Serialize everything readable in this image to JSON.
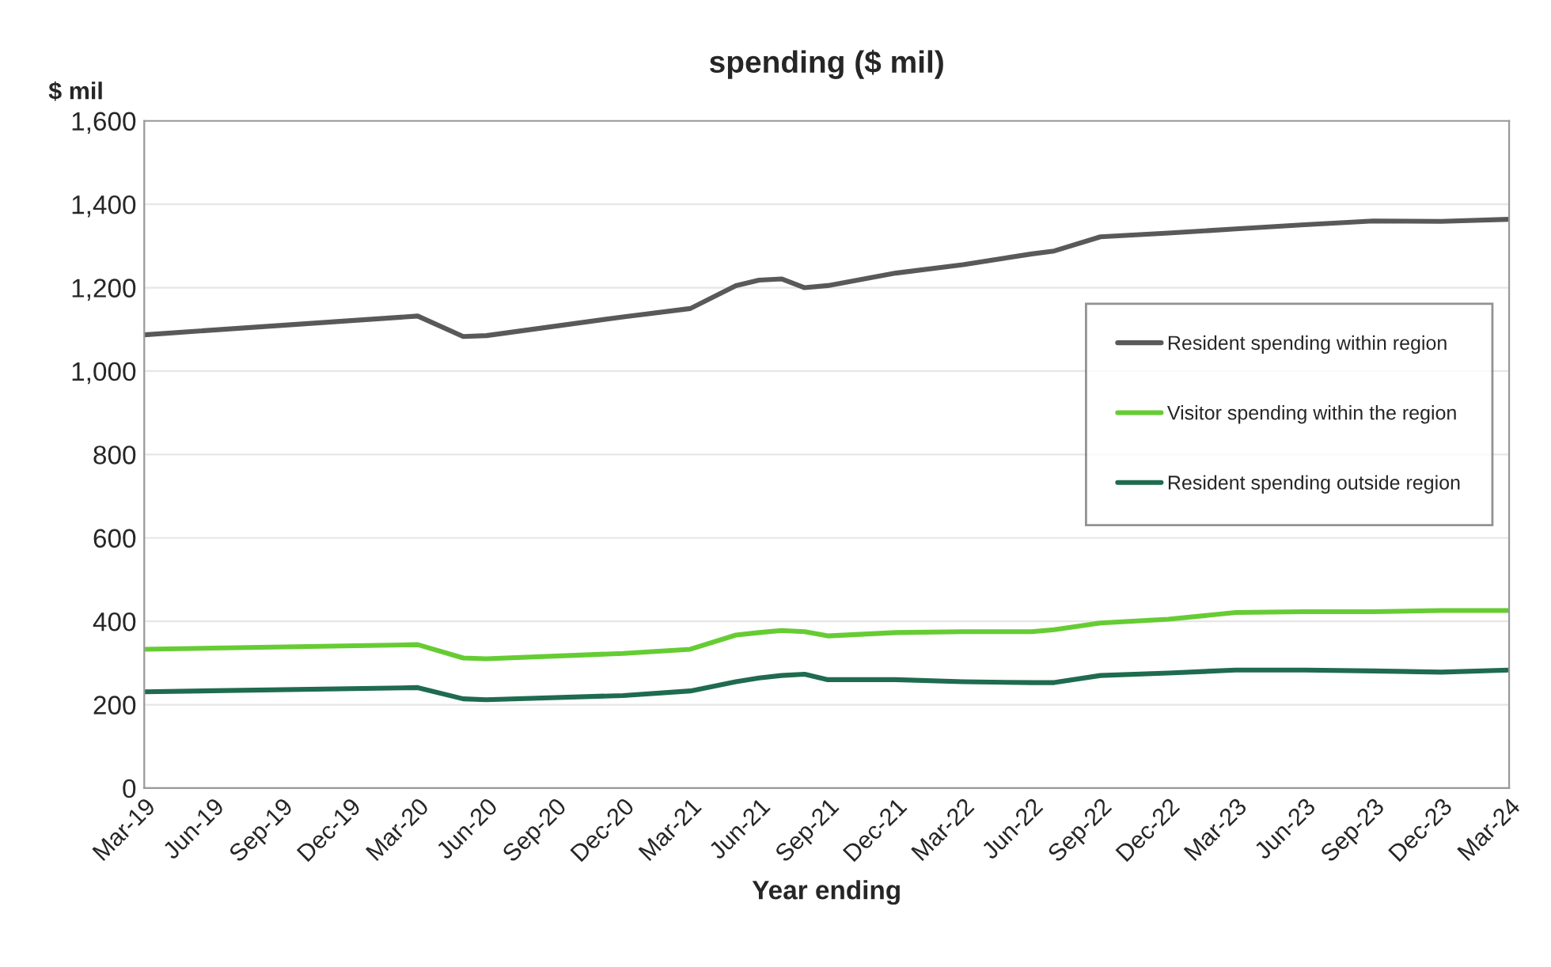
{
  "chart_data": {
    "type": "line",
    "title": "spending ($ mil)",
    "ylabel": "$ mil",
    "xlabel": "Year ending",
    "x": [
      "2019-03",
      "2020-03",
      "2020-05",
      "2020-06",
      "2020-12",
      "2021-03",
      "2021-05",
      "2021-06",
      "2021-07",
      "2021-08",
      "2021-09",
      "2021-12",
      "2022-03",
      "2022-06",
      "2022-07",
      "2022-09",
      "2022-12",
      "2023-03",
      "2023-06",
      "2023-09",
      "2023-12",
      "2024-03"
    ],
    "series": [
      {
        "name": "Resident spending within region",
        "color": "#595959",
        "values": [
          1087,
          1132,
          1083,
          1085,
          1130,
          1150,
          1205,
          1218,
          1221,
          1200,
          1205,
          1235,
          1255,
          1281,
          1288,
          1322,
          1331,
          1341,
          1351,
          1360,
          1359,
          1364
        ]
      },
      {
        "name": "Visitor spending within the region",
        "color": "#66cc33",
        "values": [
          333,
          344,
          312,
          310,
          323,
          333,
          367,
          373,
          378,
          375,
          365,
          373,
          375,
          375,
          380,
          396,
          405,
          421,
          423,
          423,
          426,
          426
        ]
      },
      {
        "name": "Resident spending outside region",
        "color": "#1f6b4f",
        "values": [
          231,
          241,
          214,
          212,
          222,
          233,
          255,
          264,
          270,
          273,
          260,
          260,
          255,
          253,
          253,
          270,
          276,
          283,
          283,
          281,
          278,
          283
        ]
      }
    ],
    "xlim": [
      "2019-03",
      "2024-03"
    ],
    "xticks": [
      {
        "value": "2019-03",
        "label": "Mar-19"
      },
      {
        "value": "2019-06",
        "label": "Jun-19"
      },
      {
        "value": "2019-09",
        "label": "Sep-19"
      },
      {
        "value": "2019-12",
        "label": "Dec-19"
      },
      {
        "value": "2020-03",
        "label": "Mar-20"
      },
      {
        "value": "2020-06",
        "label": "Jun-20"
      },
      {
        "value": "2020-09",
        "label": "Sep-20"
      },
      {
        "value": "2020-12",
        "label": "Dec-20"
      },
      {
        "value": "2021-03",
        "label": "Mar-21"
      },
      {
        "value": "2021-06",
        "label": "Jun-21"
      },
      {
        "value": "2021-09",
        "label": "Sep-21"
      },
      {
        "value": "2021-12",
        "label": "Dec-21"
      },
      {
        "value": "2022-03",
        "label": "Mar-22"
      },
      {
        "value": "2022-06",
        "label": "Jun-22"
      },
      {
        "value": "2022-09",
        "label": "Sep-22"
      },
      {
        "value": "2022-12",
        "label": "Dec-22"
      },
      {
        "value": "2023-03",
        "label": "Mar-23"
      },
      {
        "value": "2023-06",
        "label": "Jun-23"
      },
      {
        "value": "2023-09",
        "label": "Sep-23"
      },
      {
        "value": "2023-12",
        "label": "Dec-23"
      },
      {
        "value": "2024-03",
        "label": "Mar-24"
      }
    ],
    "ylim": [
      0,
      1600
    ],
    "yticks": [
      0,
      200,
      400,
      600,
      800,
      {
        "value": 1000,
        "label": "1,000"
      },
      {
        "value": 1200,
        "label": "1,200"
      },
      {
        "value": 1400,
        "label": "1,400"
      },
      {
        "value": 1600,
        "label": "1,600"
      }
    ],
    "grid": "y",
    "legend": "right",
    "marker": "none",
    "line_style": "solid"
  }
}
